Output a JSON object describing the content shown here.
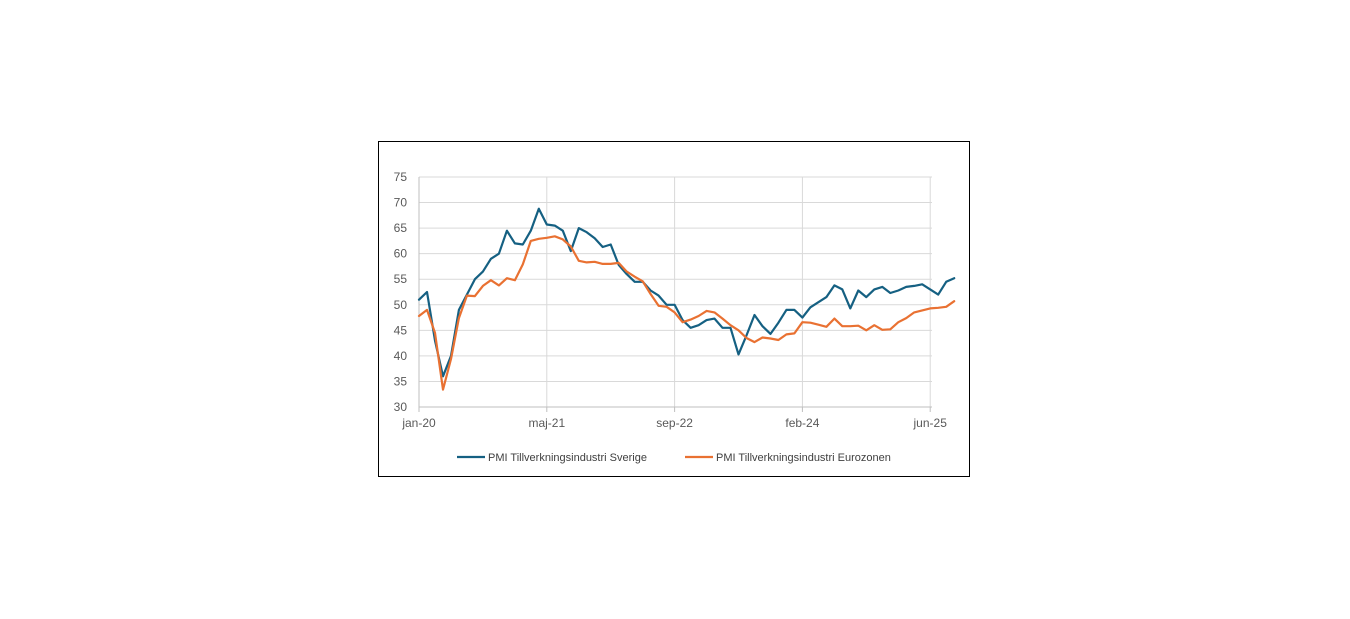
{
  "chart_data": {
    "type": "line",
    "title": "",
    "xlabel": "",
    "ylabel": "",
    "ylim": [
      30,
      75
    ],
    "yticks": [
      30,
      35,
      40,
      45,
      50,
      55,
      60,
      65,
      70,
      75
    ],
    "grid": true,
    "legend_position": "bottom",
    "x_tick_labels": [
      {
        "index": 0,
        "label": "jan-20"
      },
      {
        "index": 16,
        "label": "maj-21"
      },
      {
        "index": 32,
        "label": "sep-22"
      },
      {
        "index": 48,
        "label": "feb-24"
      },
      {
        "index": 64,
        "label": "jun-25"
      }
    ],
    "series": [
      {
        "name": "PMI Tillverkningsindustri Sverige",
        "color": "#156082",
        "values": [
          51.0,
          52.5,
          43.0,
          36.0,
          40.0,
          49.0,
          52.0,
          55.0,
          56.5,
          59.0,
          60.0,
          64.5,
          62.0,
          61.8,
          64.5,
          68.8,
          65.7,
          65.5,
          64.5,
          60.5,
          65.0,
          64.2,
          63.0,
          61.3,
          61.8,
          57.8,
          56.0,
          54.5,
          54.5,
          52.8,
          51.8,
          50.0,
          50.0,
          47.0,
          45.5,
          46.0,
          47.0,
          47.3,
          45.5,
          45.5,
          40.3,
          44.0,
          48.0,
          45.8,
          44.3,
          46.5,
          49.0,
          49.0,
          47.5,
          49.5,
          50.5,
          51.5,
          53.8,
          53.0,
          49.3,
          52.8,
          51.5,
          53.0,
          53.5,
          52.3,
          52.8,
          53.5,
          53.7,
          54.0,
          53.0,
          52.0,
          54.5,
          55.2
        ]
      },
      {
        "name": "PMI Tillverkningsindustri Eurozonen",
        "color": "#E97132",
        "values": [
          47.8,
          49.0,
          44.5,
          33.4,
          39.4,
          47.4,
          51.8,
          51.7,
          53.7,
          54.8,
          53.8,
          55.2,
          54.8,
          57.9,
          62.5,
          62.9,
          63.1,
          63.4,
          62.8,
          61.4,
          58.6,
          58.3,
          58.4,
          58.0,
          58.0,
          58.2,
          56.5,
          55.5,
          54.6,
          52.1,
          49.8,
          49.6,
          48.5,
          46.6,
          47.1,
          47.8,
          48.8,
          48.5,
          47.3,
          46.0,
          45.0,
          43.5,
          42.7,
          43.6,
          43.4,
          43.1,
          44.2,
          44.4,
          46.6,
          46.5,
          46.1,
          45.7,
          47.3,
          45.8,
          45.8,
          45.9,
          45.0,
          46.0,
          45.1,
          45.2,
          46.6,
          47.4,
          48.5,
          48.9,
          49.3,
          49.4,
          49.6,
          50.7
        ]
      }
    ]
  }
}
